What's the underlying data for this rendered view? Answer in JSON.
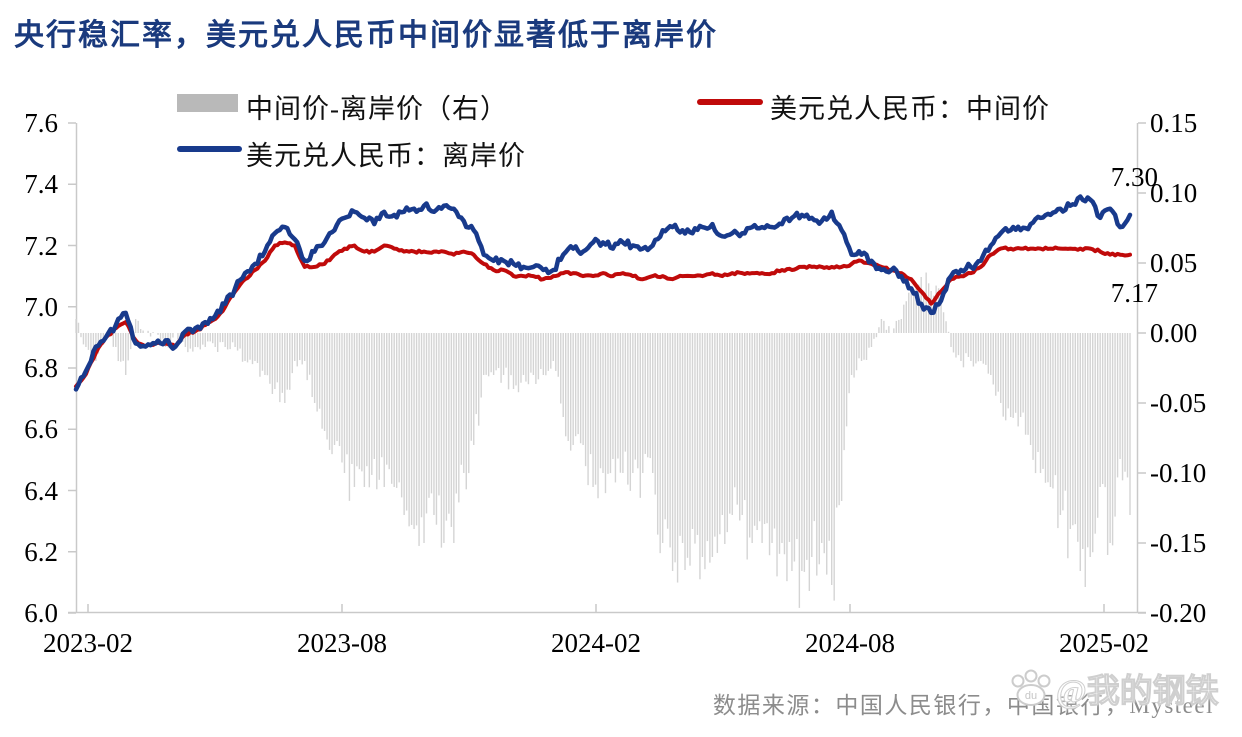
{
  "title": "央行稳汇率，美元兑人民币中间价显著低于离岸价",
  "colors": {
    "title_text": "#1a3a7d",
    "offshore_line": "#183a8c",
    "midpoint_line": "#c00a0a",
    "bars": "#d4d4d4",
    "legend_bar_swatch": "#b9b9b9",
    "axis": "#c9c9c9",
    "footer_text": "#8c8c8c"
  },
  "legend": {
    "items": [
      {
        "label": "中间价-离岸价（右）",
        "swatch": "bar",
        "color": "#b9b9b9"
      },
      {
        "label": "美元兑人民币：中间价",
        "swatch": "line",
        "color": "#c00a0a"
      },
      {
        "label": "美元兑人民币：离岸价",
        "swatch": "line",
        "color": "#183a8c"
      }
    ]
  },
  "annotations": {
    "offshore_end": "7.30",
    "midpoint_end": "7.17"
  },
  "footer": {
    "source_text": "数据来源：中国人民银行，中国银行，Mysteel"
  },
  "watermark": {
    "text": "@我的钢铁",
    "paw_label": "du"
  },
  "chart_data": {
    "type": "combo",
    "sampling": "weekly, 2023-02 through 2025-02",
    "x_axis": {
      "tick_labels": [
        "2023-02",
        "2023-08",
        "2024-02",
        "2024-08",
        "2025-02"
      ]
    },
    "left_axis": {
      "range": [
        6.0,
        7.6
      ],
      "step": 0.2,
      "tick_labels": [
        "7.6",
        "7.4",
        "7.2",
        "7.0",
        "6.8",
        "6.6",
        "6.4",
        "6.2",
        "6.0"
      ]
    },
    "right_axis": {
      "range": [
        -0.2,
        0.15
      ],
      "step": 0.05,
      "tick_labels": [
        "0.15",
        "0.10",
        "0.05",
        "0.00",
        "-0.05",
        "-0.10",
        "-0.15",
        "-0.20"
      ]
    },
    "end_labels": {
      "offshore": "7.30",
      "midpoint": "7.17"
    },
    "series": [
      {
        "name": "美元兑人民币：离岸价",
        "type": "line",
        "axis": "left",
        "color": "#183a8c",
        "values": [
          6.73,
          6.79,
          6.87,
          6.9,
          6.94,
          6.98,
          6.88,
          6.87,
          6.88,
          6.89,
          6.87,
          6.92,
          6.93,
          6.95,
          6.97,
          7.01,
          7.06,
          7.11,
          7.14,
          7.18,
          7.24,
          7.26,
          7.22,
          7.15,
          7.18,
          7.21,
          7.25,
          7.29,
          7.31,
          7.29,
          7.27,
          7.31,
          7.3,
          7.31,
          7.32,
          7.33,
          7.31,
          7.33,
          7.32,
          7.28,
          7.25,
          7.17,
          7.15,
          7.15,
          7.14,
          7.13,
          7.13,
          7.12,
          7.12,
          7.17,
          7.19,
          7.18,
          7.21,
          7.21,
          7.19,
          7.21,
          7.2,
          7.19,
          7.2,
          7.25,
          7.26,
          7.25,
          7.24,
          7.26,
          7.27,
          7.23,
          7.24,
          7.24,
          7.26,
          7.26,
          7.26,
          7.27,
          7.29,
          7.3,
          7.29,
          7.28,
          7.31,
          7.25,
          7.17,
          7.17,
          7.15,
          7.12,
          7.12,
          7.1,
          7.06,
          7.01,
          6.98,
          7.02,
          7.1,
          7.12,
          7.13,
          7.15,
          7.2,
          7.24,
          7.25,
          7.25,
          7.27,
          7.29,
          7.3,
          7.32,
          7.33,
          7.36,
          7.35,
          7.29,
          7.32,
          7.26,
          7.3
        ]
      },
      {
        "name": "美元兑人民币：中间价",
        "type": "line",
        "axis": "left",
        "color": "#c00a0a",
        "values": [
          6.74,
          6.78,
          6.85,
          6.9,
          6.93,
          6.95,
          6.89,
          6.87,
          6.88,
          6.88,
          6.87,
          6.91,
          6.92,
          6.94,
          6.96,
          7.0,
          7.05,
          7.09,
          7.12,
          7.15,
          7.2,
          7.21,
          7.2,
          7.13,
          7.13,
          7.14,
          7.17,
          7.19,
          7.2,
          7.18,
          7.18,
          7.2,
          7.19,
          7.18,
          7.18,
          7.18,
          7.18,
          7.18,
          7.17,
          7.18,
          7.17,
          7.14,
          7.12,
          7.12,
          7.1,
          7.1,
          7.1,
          7.09,
          7.1,
          7.11,
          7.11,
          7.1,
          7.1,
          7.11,
          7.1,
          7.11,
          7.1,
          7.09,
          7.1,
          7.1,
          7.09,
          7.1,
          7.1,
          7.1,
          7.11,
          7.1,
          7.11,
          7.11,
          7.11,
          7.11,
          7.11,
          7.12,
          7.12,
          7.13,
          7.13,
          7.13,
          7.13,
          7.13,
          7.14,
          7.15,
          7.14,
          7.13,
          7.12,
          7.11,
          7.09,
          7.05,
          7.01,
          7.05,
          7.09,
          7.1,
          7.11,
          7.13,
          7.17,
          7.19,
          7.19,
          7.19,
          7.19,
          7.19,
          7.19,
          7.19,
          7.19,
          7.19,
          7.19,
          7.18,
          7.17,
          7.17,
          7.17
        ]
      },
      {
        "name": "中间价-离岸价（右）",
        "type": "bar",
        "axis": "right",
        "color": "#d4d4d4",
        "formula": "midpoint - offshore",
        "values": [
          0.01,
          -0.01,
          -0.02,
          0.0,
          -0.01,
          -0.03,
          0.01,
          0.0,
          0.0,
          -0.01,
          0.0,
          -0.01,
          -0.01,
          -0.01,
          -0.01,
          -0.01,
          -0.01,
          -0.02,
          -0.02,
          -0.03,
          -0.04,
          -0.05,
          -0.02,
          -0.02,
          -0.05,
          -0.07,
          -0.08,
          -0.1,
          -0.11,
          -0.11,
          -0.09,
          -0.11,
          -0.11,
          -0.13,
          -0.14,
          -0.15,
          -0.13,
          -0.15,
          -0.15,
          -0.1,
          -0.08,
          -0.03,
          -0.03,
          -0.03,
          -0.04,
          -0.03,
          -0.03,
          -0.03,
          -0.02,
          -0.06,
          -0.08,
          -0.08,
          -0.11,
          -0.1,
          -0.09,
          -0.1,
          -0.1,
          -0.1,
          -0.1,
          -0.15,
          -0.17,
          -0.15,
          -0.14,
          -0.16,
          -0.16,
          -0.13,
          -0.13,
          -0.13,
          -0.15,
          -0.15,
          -0.15,
          -0.15,
          -0.17,
          -0.17,
          -0.16,
          -0.15,
          -0.18,
          -0.12,
          -0.03,
          -0.02,
          -0.01,
          0.01,
          0.0,
          0.01,
          0.03,
          0.04,
          0.03,
          0.03,
          -0.01,
          -0.02,
          -0.02,
          -0.02,
          -0.03,
          -0.05,
          -0.06,
          -0.06,
          -0.08,
          -0.1,
          -0.11,
          -0.13,
          -0.14,
          -0.17,
          -0.16,
          -0.11,
          -0.15,
          -0.09,
          -0.13
        ]
      }
    ]
  }
}
